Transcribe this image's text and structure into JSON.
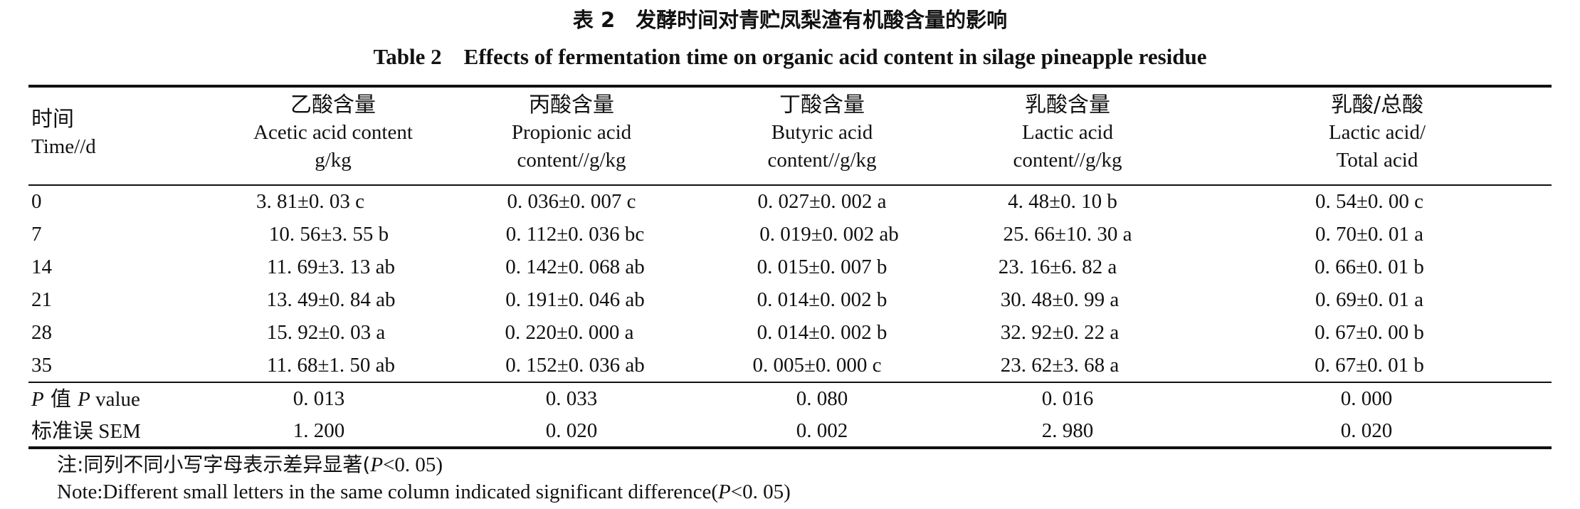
{
  "title_cn": "表 2　发酵时间对青贮凤梨渣有机酸含量的影响",
  "title_en": "Table 2　Effects of fermentation time on organic acid content in silage pineapple residue",
  "headers": [
    {
      "cn": "时间",
      "en1": "Time//d",
      "en2": ""
    },
    {
      "cn": "乙酸含量",
      "en1": "Acetic acid content",
      "en2": "g/kg"
    },
    {
      "cn": "丙酸含量",
      "en1": "Propionic acid",
      "en2": "content//g/kg"
    },
    {
      "cn": "丁酸含量",
      "en1": "Butyric acid",
      "en2": "content//g/kg"
    },
    {
      "cn": "乳酸含量",
      "en1": "Lactic acid",
      "en2": "content//g/kg"
    },
    {
      "cn": "乳酸/总酸",
      "en1": "Lactic acid/",
      "en2": "Total acid"
    }
  ],
  "rows": [
    [
      "0",
      "3. 81±0. 03 c",
      "0. 036±0. 007 c",
      "0. 027±0. 002 a",
      "4. 48±0. 10 b",
      "0. 54±0. 00 c"
    ],
    [
      "7",
      "10. 56±3. 55 b",
      "0. 112±0. 036 bc",
      "0. 019±0. 002 ab",
      "25. 66±10. 30 a",
      "0. 70±0. 01 a"
    ],
    [
      "14",
      "11. 69±3. 13 ab",
      "0. 142±0. 068 ab",
      "0. 015±0. 007 b",
      "23. 16±6. 82 a",
      "0. 66±0. 01 b"
    ],
    [
      "21",
      "13. 49±0. 84 ab",
      "0. 191±0. 046 ab",
      "0. 014±0. 002 b",
      "30. 48±0. 99 a",
      "0. 69±0. 01 a"
    ],
    [
      "28",
      "15. 92±0. 03 a",
      "0. 220±0. 000 a",
      "0. 014±0. 002 b",
      "32. 92±0. 22 a",
      "0. 67±0. 00 b"
    ],
    [
      "35",
      "11. 68±1. 50 ab",
      "0. 152±0. 036 ab",
      "0. 005±0. 000 c",
      "23. 62±3. 68 a",
      "0. 67±0. 01 b"
    ]
  ],
  "pvalue_row": {
    "label_italic_1": "P",
    "label_cn": " 值 ",
    "label_italic_2": "P",
    "label_rest": " value",
    "values": [
      "0. 013",
      "0. 033",
      "0. 080",
      "0. 016",
      "0. 000"
    ]
  },
  "sem_row": {
    "label_cn": "标准误",
    "label_en": " SEM",
    "values": [
      "1. 200",
      "0. 020",
      "0. 002",
      "2. 980",
      "0. 020"
    ]
  },
  "note_cn": {
    "prefix": "注:同列不同小写字母表示差异显著(",
    "italic": "P",
    "suffix": "<0. 05)"
  },
  "note_en": {
    "prefix": "Note:Different small letters in the same column indicated significant difference(",
    "italic": "P",
    "suffix": "<0. 05)"
  }
}
